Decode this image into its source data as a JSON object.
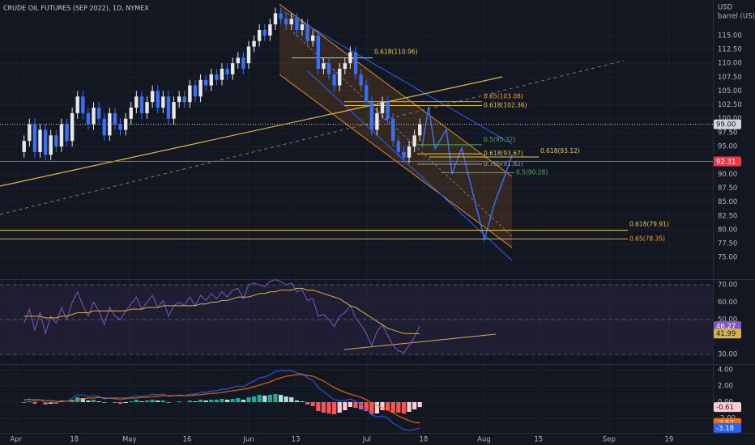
{
  "chart_data": [
    {
      "type": "candlestick",
      "title": "CRUDE OIL FUTURES (SEP 2022), 1D, NYMEX",
      "currency": "USD",
      "unit": "barrel (US)",
      "open": [
        94,
        96,
        99,
        94,
        98,
        93.5,
        97,
        95,
        99,
        96,
        101,
        104,
        101,
        99,
        102,
        100,
        97,
        101,
        99,
        98,
        100,
        102,
        104,
        101,
        103,
        105,
        102,
        104,
        100,
        103,
        104,
        103,
        106,
        104,
        107,
        106,
        108,
        107,
        109,
        108,
        110,
        111,
        110,
        113,
        114,
        116,
        115,
        117,
        119,
        118,
        117,
        118,
        116,
        117,
        114,
        115,
        109,
        110,
        108,
        106,
        109,
        110,
        112,
        108,
        106,
        103,
        98,
        101,
        103,
        100,
        96,
        94,
        93,
        95,
        97
      ],
      "high": [
        97,
        100,
        100,
        99,
        99,
        98,
        98,
        100,
        100,
        102,
        105,
        105,
        102,
        103,
        103,
        101,
        102,
        102,
        100,
        101,
        103,
        105,
        105,
        104,
        106,
        106,
        105,
        105,
        104,
        105,
        105,
        107,
        107,
        108,
        108,
        109,
        109,
        110,
        110,
        111,
        112,
        112,
        114,
        115,
        117,
        117,
        118,
        120,
        120,
        119,
        119,
        119,
        118,
        118,
        116,
        116,
        111,
        111,
        109,
        110,
        111,
        113,
        113,
        109,
        107,
        104,
        102,
        104,
        104,
        101,
        97,
        95,
        96,
        98,
        100
      ],
      "low": [
        93,
        95,
        93,
        93,
        92.5,
        92.5,
        94,
        94,
        95,
        95,
        100,
        100,
        98,
        98,
        99,
        96,
        96,
        98,
        97,
        97,
        99,
        101,
        100,
        100,
        102,
        101,
        101,
        99,
        99,
        102,
        102,
        102,
        103,
        103,
        105,
        105,
        106,
        106,
        107,
        107,
        109,
        108,
        109,
        112,
        113,
        114,
        114,
        116,
        117,
        116,
        116,
        115,
        115,
        113,
        113,
        108,
        108,
        107,
        105,
        105,
        108,
        109,
        107,
        105,
        102,
        97,
        97,
        100,
        99,
        95,
        93,
        92,
        92,
        94,
        96
      ],
      "close": [
        96,
        99,
        94,
        98,
        93.5,
        97,
        95,
        99,
        96,
        101,
        104,
        101,
        99,
        102,
        100,
        97,
        101,
        99,
        98,
        100,
        102,
        104,
        101,
        103,
        105,
        102,
        104,
        100,
        103,
        104,
        103,
        106,
        104,
        107,
        106,
        108,
        107,
        109,
        108,
        110,
        111,
        109,
        113,
        114,
        116,
        115,
        117,
        119,
        118,
        117,
        118,
        116,
        117,
        114,
        115,
        109,
        110,
        108,
        106,
        109,
        110,
        112,
        108,
        106,
        103,
        98,
        101,
        103,
        100,
        96,
        94,
        93,
        95,
        97,
        99
      ],
      "up_color": "#e8e8e8",
      "down_color": "#3a6ff0",
      "xlim": [
        -4.5,
        128.8
      ],
      "xticks": [
        {
          "value": -1.5,
          "label": "Apr"
        },
        {
          "value": 9.4,
          "label": "18"
        },
        {
          "value": 19.7,
          "label": "May"
        },
        {
          "value": 30.5,
          "label": "16"
        },
        {
          "value": 42,
          "label": "Jun"
        },
        {
          "value": 50.8,
          "label": "13"
        },
        {
          "value": 64.1,
          "label": "Jul"
        },
        {
          "value": 74.7,
          "label": "18"
        },
        {
          "value": 86,
          "label": "Aug"
        },
        {
          "value": 96.2,
          "label": "15"
        },
        {
          "value": 109.4,
          "label": "Sep"
        },
        {
          "value": 120.6,
          "label": "19"
        }
      ],
      "ylim": [
        71.1,
        121.1
      ],
      "yticks": [
        {
          "value": 75,
          "label": "75.00"
        },
        {
          "value": 77.5,
          "label": "77.50"
        },
        {
          "value": 80,
          "label": "80.00"
        },
        {
          "value": 82.5,
          "label": "82.50"
        },
        {
          "value": 85,
          "label": "85.00"
        },
        {
          "value": 87.5,
          "label": "87.50"
        },
        {
          "value": 90,
          "label": "90.00"
        },
        {
          "value": 92.5,
          "label": "92.50"
        },
        {
          "value": 95,
          "label": "95.00"
        },
        {
          "value": 97.5,
          "label": "97.50"
        },
        {
          "value": 100,
          "label": "100.00"
        },
        {
          "value": 102.5,
          "label": "102.50"
        },
        {
          "value": 105,
          "label": "105.00"
        },
        {
          "value": 107.5,
          "label": "107.50"
        },
        {
          "value": 110,
          "label": "110.00"
        },
        {
          "value": 112.5,
          "label": "112.50"
        },
        {
          "value": 115,
          "label": "115.00"
        }
      ],
      "price_lines": [
        {
          "value": 99,
          "label": "99.00",
          "color": "#d1d4dc"
        },
        {
          "value": 92.31,
          "label": "92.31",
          "color": "#f23645"
        }
      ],
      "annotations": [
        {
          "text": "0.618(110.96)",
          "value": 110.96,
          "color": "#f0c93a"
        },
        {
          "text": "0.65(103.08)",
          "value": 103.08,
          "color": "#f5a623"
        },
        {
          "text": "0.618(102.36)",
          "value": 102.36,
          "color": "#f0c93a"
        },
        {
          "text": "0.5(95.32)",
          "value": 95.32,
          "color": "#4caf50"
        },
        {
          "text": "0.618(93.67)",
          "value": 93.67,
          "color": "#f0c93a"
        },
        {
          "text": "0.618(93.12)",
          "value": 93.12,
          "color": "#f0c93a"
        },
        {
          "text": "0.786(91.82)",
          "value": 91.82,
          "color": "#9ea3ad"
        },
        {
          "text": "0.5(90.28)",
          "value": 90.28,
          "color": "#4caf50"
        },
        {
          "text": "0.618(79.91)",
          "value": 79.91,
          "color": "#f0c93a"
        },
        {
          "text": "0.65(78.35)",
          "value": 78.35,
          "color": "#f5a623"
        }
      ]
    },
    {
      "type": "line",
      "series": [
        {
          "color": "#7e57c2",
          "values": [
            48,
            56,
            44,
            54,
            42,
            52,
            48,
            57,
            50,
            60,
            66,
            58,
            52,
            60,
            55,
            47,
            57,
            52,
            50,
            55,
            59,
            63,
            56,
            60,
            64,
            57,
            61,
            52,
            58,
            60,
            58,
            63,
            58,
            64,
            61,
            65,
            62,
            66,
            63,
            67,
            68,
            62,
            70,
            71,
            70,
            69,
            72,
            73,
            72,
            70,
            71,
            66,
            67,
            61,
            62,
            52,
            53,
            50,
            46,
            52,
            54,
            58,
            51,
            47,
            42,
            35,
            43,
            47,
            41,
            35,
            32,
            31,
            35,
            40,
            46.27
          ]
        },
        {
          "color": "#d4b24c",
          "values": [
            52,
            52,
            52,
            52,
            51,
            51,
            51,
            52,
            52,
            53,
            54,
            54,
            54,
            55,
            55,
            55,
            55,
            55,
            55,
            55,
            56,
            56,
            56,
            57,
            57,
            57,
            58,
            58,
            58,
            58,
            58,
            58,
            58,
            59,
            59,
            60,
            60,
            61,
            61,
            62,
            63,
            63,
            63,
            64,
            65,
            65,
            66,
            66,
            67,
            67,
            67,
            68,
            68,
            67,
            67,
            66,
            65,
            64,
            63,
            62,
            60,
            58,
            57,
            55,
            53,
            51,
            49,
            47,
            45,
            44,
            43,
            42,
            42,
            42,
            41.99
          ]
        }
      ],
      "band": [
        30,
        70
      ],
      "band_color": "#7e57c2",
      "ylim": [
        24.4,
        73.3
      ],
      "yticks": [
        {
          "value": 30,
          "label": "30.00"
        },
        {
          "value": 50,
          "label": "50.00"
        },
        {
          "value": 60,
          "label": "60.00"
        },
        {
          "value": 70,
          "label": "70.00"
        }
      ]
    },
    {
      "type": "macd",
      "series": [
        {
          "color": "#2962ff",
          "values": [
            0.2,
            0.4,
            0.1,
            0.3,
            -0.1,
            0.0,
            -0.1,
            0.2,
            0.1,
            0.5,
            0.9,
            0.9,
            0.7,
            0.8,
            0.7,
            0.4,
            0.5,
            0.4,
            0.3,
            0.4,
            0.6,
            0.8,
            0.7,
            0.8,
            1.0,
            0.9,
            1.0,
            0.7,
            0.8,
            0.9,
            0.8,
            1.0,
            1.0,
            1.2,
            1.2,
            1.4,
            1.4,
            1.6,
            1.6,
            1.8,
            2.0,
            1.9,
            2.3,
            2.6,
            3.0,
            3.1,
            3.4,
            3.8,
            3.9,
            3.9,
            3.9,
            3.6,
            3.5,
            3.0,
            2.7,
            1.8,
            1.3,
            0.8,
            0.3,
            0.2,
            0.2,
            0.4,
            0.1,
            -0.3,
            -0.8,
            -1.6,
            -1.8,
            -1.7,
            -2.0,
            -2.6,
            -3.0,
            -3.4,
            -3.5,
            -3.4,
            -3.18
          ]
        },
        {
          "color": "#ff6d00",
          "values": [
            0.3,
            0.3,
            0.3,
            0.3,
            0.2,
            0.2,
            0.1,
            0.1,
            0.1,
            0.2,
            0.3,
            0.4,
            0.5,
            0.5,
            0.6,
            0.5,
            0.5,
            0.5,
            0.5,
            0.5,
            0.5,
            0.5,
            0.6,
            0.6,
            0.7,
            0.7,
            0.8,
            0.8,
            0.8,
            0.8,
            0.8,
            0.8,
            0.9,
            0.9,
            1.0,
            1.1,
            1.1,
            1.2,
            1.3,
            1.4,
            1.5,
            1.6,
            1.7,
            1.9,
            2.1,
            2.3,
            2.5,
            2.8,
            3.0,
            3.2,
            3.3,
            3.4,
            3.4,
            3.3,
            3.2,
            2.9,
            2.6,
            2.2,
            1.8,
            1.5,
            1.2,
            1.0,
            0.8,
            0.6,
            0.3,
            -0.1,
            -0.4,
            -0.7,
            -1.0,
            -1.3,
            -1.7,
            -2.0,
            -2.3,
            -2.5,
            -2.57
          ]
        }
      ],
      "histogram": [
        -0.1,
        0.1,
        -0.2,
        0,
        -0.3,
        -0.2,
        -0.2,
        0.1,
        0,
        0.3,
        0.6,
        0.5,
        0.2,
        0.3,
        0.1,
        -0.1,
        0,
        -0.1,
        -0.2,
        -0.1,
        0.1,
        0.3,
        0.1,
        0.2,
        0.3,
        0.2,
        0.2,
        -0.1,
        0,
        0.1,
        0,
        0.2,
        0.1,
        0.3,
        0.2,
        0.3,
        0.3,
        0.4,
        0.3,
        0.4,
        0.5,
        0.3,
        0.6,
        0.7,
        0.9,
        0.8,
        0.9,
        1.0,
        0.9,
        0.7,
        0.6,
        0.2,
        0.1,
        -0.3,
        -0.5,
        -1.1,
        -1.3,
        -1.4,
        -1.5,
        -1.3,
        -1.0,
        -0.6,
        -0.7,
        -0.9,
        -1.1,
        -1.5,
        -1.4,
        -1.0,
        -1.0,
        -1.3,
        -1.3,
        -1.4,
        -1.2,
        -0.9,
        -0.61
      ],
      "histogram_colors": [
        "#26a69a",
        "#b2dfdb",
        "#ff5252",
        "#ffcdd2"
      ],
      "histogram_last_color": "#ffcdd2",
      "ylim": [
        -3.8,
        4.7
      ],
      "yticks": [
        {
          "value": -2,
          "label": "-2.00"
        },
        {
          "value": 0,
          "label": "0.00"
        },
        {
          "value": 2,
          "label": "2.00"
        },
        {
          "value": 4,
          "label": "4.00"
        }
      ]
    }
  ]
}
